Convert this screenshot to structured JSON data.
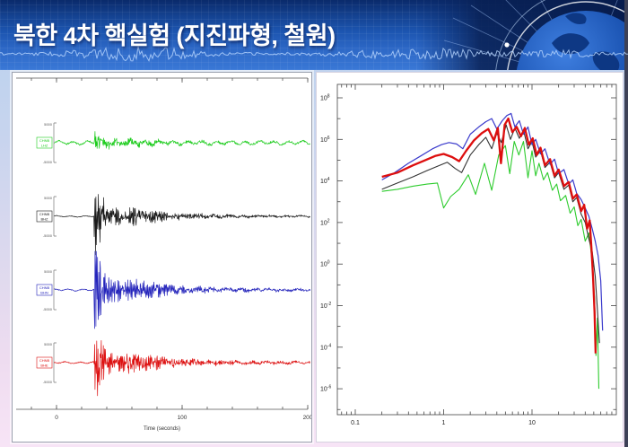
{
  "header": {
    "title": "북한 4차 핵실험 (지진파형, 철원)"
  },
  "colors": {
    "header_top": "#0a2a6b",
    "header_bottom": "#3a78d6",
    "slide_top": "#b7d1ee",
    "slide_bottom": "#f7e4f6",
    "edge_dark": "#3d4157",
    "trace_green": "#1ecc1e",
    "trace_black": "#1a1a1a",
    "trace_blue": "#2424bb",
    "trace_red": "#dd1111"
  },
  "chart_data": [
    {
      "id": "waveforms",
      "type": "line",
      "title": "",
      "xlabel": "Time (seconds)",
      "x_ticks_labeled": [
        0,
        100,
        200
      ],
      "x_minor_step_s": 20,
      "x_range_s": [
        -32,
        201
      ],
      "grid": false,
      "legend": "none",
      "description": "Four seismogram traces, signal onset near t=30 s followed by decaying coda",
      "series": [
        {
          "name": "trace-green",
          "color": "#1ecc1e",
          "label_lines": [
            "CHNB",
            "LHZ"
          ],
          "amp_top": "5000",
          "amp_bottom": "-5000",
          "onset_s": 30,
          "pre_amp": 2.2,
          "burst_amp": 10,
          "coda_amp": 2.4,
          "hf": 1.15,
          "seed": 11,
          "phase": 0.5
        },
        {
          "name": "trace-black",
          "color": "#1a1a1a",
          "label_lines": [
            "CHNB",
            "BHZ"
          ],
          "amp_top": "5000",
          "amp_bottom": "-5000",
          "onset_s": 30,
          "pre_amp": 0.8,
          "burst_amp": 40,
          "coda_amp": 7.5,
          "hf": 1.0,
          "seed": 22,
          "phase": 1.7
        },
        {
          "name": "trace-blue",
          "color": "#2424bb",
          "label_lines": [
            "CHNB",
            "BHN"
          ],
          "amp_top": "5000",
          "amp_bottom": "-5000",
          "onset_s": 30,
          "pre_amp": 1.1,
          "burst_amp": 44,
          "coda_amp": 9.5,
          "hf": 0.9,
          "seed": 33,
          "phase": 2.6
        },
        {
          "name": "trace-red",
          "color": "#dd1111",
          "label_lines": [
            "CHNB",
            "BHE"
          ],
          "amp_top": "5000",
          "amp_bottom": "-5000",
          "onset_s": 30,
          "pre_amp": 1.1,
          "burst_amp": 42,
          "coda_amp": 9.0,
          "hf": 1.05,
          "seed": 44,
          "phase": 3.9
        }
      ]
    },
    {
      "id": "spectra",
      "type": "line",
      "title": "",
      "x_scale": "log",
      "y_scale": "log",
      "x_ticks_labeled": [
        0.1,
        1,
        10
      ],
      "y_ticks_labeled_exps": [
        8,
        6,
        4,
        2,
        0,
        -2,
        -4,
        -6
      ],
      "x_range_exp": [
        -1.2,
        1.95
      ],
      "y_range_exp": [
        8.65,
        -7.25
      ],
      "grid": false,
      "legend": "none",
      "description": "Log-log amplitude spectra, frequency (Hz) vs amplitude, peak near 3-6 Hz then steep high-frequency decay",
      "series": [
        {
          "name": "spectrum-green",
          "color": "#2ecc2e",
          "width": 1.1,
          "points": [
            [
              0.2,
              3.5
            ],
            [
              0.3,
              3.6
            ],
            [
              0.45,
              3.75
            ],
            [
              0.65,
              3.85
            ],
            [
              0.85,
              3.9
            ],
            [
              1.0,
              2.7
            ],
            [
              1.2,
              3.25
            ],
            [
              1.5,
              3.6
            ],
            [
              1.9,
              4.3
            ],
            [
              2.3,
              3.35
            ],
            [
              2.9,
              4.85
            ],
            [
              3.5,
              3.55
            ],
            [
              4.2,
              5.25
            ],
            [
              5.0,
              5.7
            ],
            [
              5.6,
              4.35
            ],
            [
              6.3,
              5.9
            ],
            [
              7.1,
              5.25
            ],
            [
              8.0,
              5.9
            ],
            [
              9.0,
              4.15
            ],
            [
              10,
              5.45
            ],
            [
              11,
              4.25
            ],
            [
              12,
              4.85
            ],
            [
              13.5,
              4.05
            ],
            [
              15,
              4.4
            ],
            [
              17,
              3.55
            ],
            [
              19,
              3.85
            ],
            [
              21,
              3.05
            ],
            [
              24,
              3.3
            ],
            [
              27,
              2.45
            ],
            [
              30,
              2.75
            ],
            [
              33,
              1.85
            ],
            [
              36,
              2.15
            ],
            [
              40,
              1.1
            ],
            [
              44,
              1.5
            ],
            [
              48,
              0.1
            ],
            [
              51,
              -1.6
            ],
            [
              53,
              -4.4
            ],
            [
              55,
              -2.6
            ],
            [
              57,
              -6.0
            ]
          ]
        },
        {
          "name": "spectrum-black",
          "color": "#333333",
          "width": 1.1,
          "points": [
            [
              0.2,
              3.6
            ],
            [
              0.3,
              3.9
            ],
            [
              0.45,
              4.2
            ],
            [
              0.65,
              4.5
            ],
            [
              0.9,
              4.75
            ],
            [
              1.1,
              4.9
            ],
            [
              1.35,
              4.6
            ],
            [
              1.6,
              4.4
            ],
            [
              2.0,
              5.25
            ],
            [
              2.5,
              5.75
            ],
            [
              3.0,
              6.1
            ],
            [
              3.5,
              5.55
            ],
            [
              4.0,
              6.3
            ],
            [
              4.5,
              5.85
            ],
            [
              5.1,
              6.7
            ],
            [
              5.7,
              6.0
            ],
            [
              6.4,
              6.55
            ],
            [
              7.2,
              6.05
            ],
            [
              8.0,
              6.45
            ],
            [
              9.0,
              5.55
            ],
            [
              10,
              5.9
            ],
            [
              11,
              5.15
            ],
            [
              12.5,
              5.45
            ],
            [
              14,
              4.65
            ],
            [
              16,
              4.9
            ],
            [
              18,
              4.15
            ],
            [
              20,
              4.4
            ],
            [
              23,
              3.6
            ],
            [
              26,
              3.8
            ],
            [
              29,
              3.0
            ],
            [
              32,
              3.2
            ],
            [
              36,
              2.4
            ],
            [
              40,
              2.0
            ],
            [
              44,
              1.2
            ],
            [
              48,
              0.6
            ],
            [
              52,
              -0.6
            ],
            [
              55,
              -2.2
            ],
            [
              58,
              -3.8
            ]
          ]
        },
        {
          "name": "spectrum-blue",
          "color": "#3a3acc",
          "width": 1.2,
          "points": [
            [
              0.2,
              4.05
            ],
            [
              0.28,
              4.4
            ],
            [
              0.4,
              4.85
            ],
            [
              0.55,
              5.2
            ],
            [
              0.75,
              5.55
            ],
            [
              0.95,
              5.75
            ],
            [
              1.15,
              5.85
            ],
            [
              1.4,
              5.78
            ],
            [
              1.65,
              5.55
            ],
            [
              2.0,
              6.25
            ],
            [
              2.5,
              6.6
            ],
            [
              3.0,
              6.85
            ],
            [
              3.5,
              7.0
            ],
            [
              4.0,
              6.5
            ],
            [
              4.6,
              6.9
            ],
            [
              5.2,
              7.15
            ],
            [
              5.8,
              7.25
            ],
            [
              6.4,
              6.6
            ],
            [
              7.2,
              6.9
            ],
            [
              8.0,
              6.25
            ],
            [
              9.0,
              6.6
            ],
            [
              10,
              5.75
            ],
            [
              11,
              6.0
            ],
            [
              12.5,
              5.3
            ],
            [
              14,
              5.55
            ],
            [
              16,
              4.8
            ],
            [
              18,
              5.05
            ],
            [
              20,
              4.35
            ],
            [
              23,
              4.55
            ],
            [
              26,
              3.85
            ],
            [
              29,
              4.05
            ],
            [
              32,
              3.4
            ],
            [
              36,
              3.1
            ],
            [
              40,
              2.7
            ],
            [
              44,
              2.3
            ],
            [
              48,
              1.7
            ],
            [
              52,
              1.1
            ],
            [
              56,
              0.4
            ],
            [
              60,
              -0.8
            ],
            [
              63,
              -3.2
            ]
          ]
        },
        {
          "name": "spectrum-red",
          "color": "#dd0e0e",
          "width": 2.3,
          "points": [
            [
              0.2,
              4.2
            ],
            [
              0.3,
              4.4
            ],
            [
              0.45,
              4.75
            ],
            [
              0.62,
              5.0
            ],
            [
              0.8,
              5.2
            ],
            [
              1.0,
              5.3
            ],
            [
              1.25,
              5.15
            ],
            [
              1.5,
              4.95
            ],
            [
              1.8,
              5.45
            ],
            [
              2.2,
              5.95
            ],
            [
              2.7,
              6.3
            ],
            [
              3.2,
              6.5
            ],
            [
              3.7,
              5.95
            ],
            [
              4.1,
              6.55
            ],
            [
              4.45,
              4.85
            ],
            [
              4.9,
              6.7
            ],
            [
              5.4,
              7.0
            ],
            [
              6.0,
              6.35
            ],
            [
              6.7,
              6.6
            ],
            [
              7.5,
              6.15
            ],
            [
              8.3,
              6.55
            ],
            [
              9.2,
              5.75
            ],
            [
              10.2,
              6.05
            ],
            [
              11.3,
              5.25
            ],
            [
              12.5,
              5.6
            ],
            [
              14,
              4.75
            ],
            [
              16,
              5.05
            ],
            [
              18,
              4.25
            ],
            [
              20,
              4.55
            ],
            [
              23,
              3.75
            ],
            [
              26,
              3.95
            ],
            [
              29,
              3.15
            ],
            [
              32,
              3.35
            ],
            [
              36,
              2.55
            ],
            [
              39,
              2.85
            ],
            [
              42,
              1.7
            ],
            [
              45,
              2.1
            ],
            [
              47,
              0.8
            ],
            [
              49,
              -0.6
            ],
            [
              51,
              -2.3
            ],
            [
              52.5,
              -4.3
            ]
          ]
        }
      ]
    }
  ]
}
